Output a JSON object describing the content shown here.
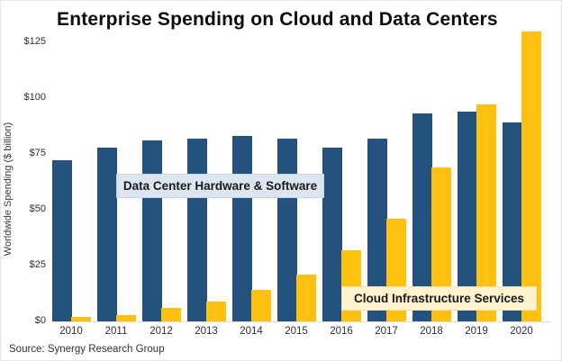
{
  "header": {
    "title": "Enterprise Spending on Cloud and Data Centers"
  },
  "axes": {
    "ylabel": "Worldwide Spending ($ billion)"
  },
  "footer": {
    "source": "Source: Synergy Research Group"
  },
  "colors": {
    "dc_bar": "#24517E",
    "cloud_bar": "#FFC010",
    "dc_label_bg": "#DCE6F1",
    "cloud_label_bg": "#FFF2CC",
    "background": "#FFFFFF"
  },
  "chart_data": {
    "type": "bar",
    "title": "Enterprise Spending on Cloud and Data Centers",
    "xlabel": "",
    "ylabel": "Worldwide Spending ($ billion)",
    "categories": [
      "2010",
      "2011",
      "2012",
      "2013",
      "2014",
      "2015",
      "2016",
      "2017",
      "2018",
      "2019",
      "2020"
    ],
    "series": [
      {
        "name": "Data Center Hardware & Software",
        "color": "#24517E",
        "values": [
          72,
          78,
          81,
          82,
          83,
          82,
          78,
          82,
          93,
          94,
          89
        ]
      },
      {
        "name": "Cloud Infrastructure Services",
        "color": "#FFC010",
        "values": [
          2,
          3,
          6,
          9,
          14,
          21,
          32,
          46,
          69,
          97,
          130
        ]
      }
    ],
    "y_ticks": [
      0,
      25,
      50,
      75,
      100,
      125
    ],
    "y_tick_labels": [
      "$0",
      "$25",
      "$50",
      "$75",
      "$100",
      "$125"
    ],
    "ylim": [
      0,
      135
    ],
    "grid": false,
    "legend_position": "inline-label-boxes",
    "source": "Source: Synergy Research Group"
  }
}
